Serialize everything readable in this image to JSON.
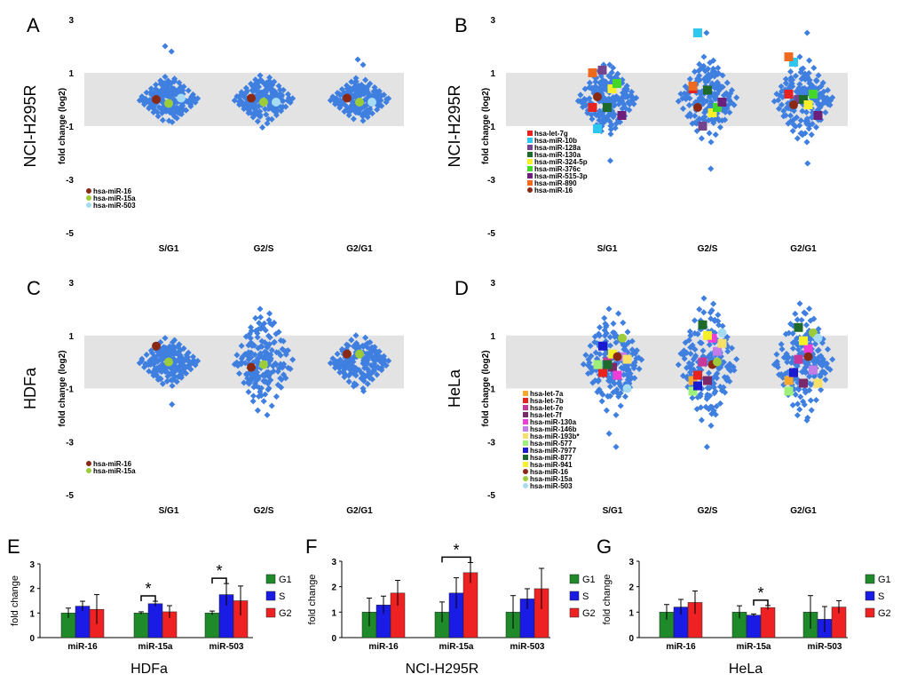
{
  "figure": {
    "background": "#ffffff",
    "band_color": "#e3e3e3",
    "cloud_color": "#3f7fe0"
  },
  "chart_data": [
    {
      "id": "A",
      "type": "scatter",
      "panel_label": "A",
      "row_label": "NCI-H295R",
      "ylabel": "fold change (log2)",
      "ylim": [
        -5,
        3
      ],
      "yticks": [
        3,
        1,
        -1,
        -3,
        -5
      ],
      "band": [
        -1,
        1
      ],
      "categories": [
        "S/G1",
        "G2/S",
        "G2/G1"
      ],
      "clouds": [
        {
          "spread": 0.85,
          "outliers": [
            1.8,
            2.0,
            -0.8
          ]
        },
        {
          "spread": 0.9,
          "outliers": [
            -1.05
          ]
        },
        {
          "spread": 0.8,
          "outliers": [
            1.3,
            1.5
          ]
        }
      ],
      "legend": [
        {
          "name": "hsa-miR-16",
          "color": "#8b2a14",
          "shape": "circle"
        },
        {
          "name": "hsa-miR-15a",
          "color": "#9ccc3a",
          "shape": "circle"
        },
        {
          "name": "hsa-miR-503",
          "color": "#a6dcf2",
          "shape": "circle"
        }
      ],
      "points": [
        {
          "series": "hsa-miR-16",
          "values": [
            0.0,
            0.05,
            0.05
          ]
        },
        {
          "series": "hsa-miR-15a",
          "values": [
            -0.15,
            -0.1,
            -0.1
          ]
        },
        {
          "series": "hsa-miR-503",
          "values": [
            0.05,
            -0.1,
            -0.1
          ]
        }
      ]
    },
    {
      "id": "B",
      "type": "scatter",
      "panel_label": "B",
      "row_label": "NCI-H295R",
      "ylabel": "fold change (log2)",
      "ylim": [
        -5,
        3
      ],
      "yticks": [
        3,
        1,
        -1,
        -3,
        -5
      ],
      "band": [
        -1,
        1
      ],
      "categories": [
        "S/G1",
        "G2/S",
        "G2/G1"
      ],
      "clouds": [
        {
          "spread": 1.3,
          "outliers": [
            -2.3,
            1.3
          ]
        },
        {
          "spread": 1.6,
          "outliers": [
            2.5,
            -2.6
          ]
        },
        {
          "spread": 1.6,
          "outliers": [
            2.5,
            -2.4
          ]
        }
      ],
      "legend": [
        {
          "name": "hsa-let-7g",
          "color": "#e8231f",
          "shape": "square"
        },
        {
          "name": "hsa-miR-10b",
          "color": "#2ec7f0",
          "shape": "square"
        },
        {
          "name": "hsa-miR-128a",
          "color": "#74448e",
          "shape": "square"
        },
        {
          "name": "hsa-miR-130a",
          "color": "#1e6a2a",
          "shape": "square"
        },
        {
          "name": "hsa-miR-324-5p",
          "color": "#f5f02a",
          "shape": "square"
        },
        {
          "name": "hsa-miR-376c",
          "color": "#44d628",
          "shape": "square"
        },
        {
          "name": "hsa-miR-515-3p",
          "color": "#6d1f7c",
          "shape": "square"
        },
        {
          "name": "hsa-miR-890",
          "color": "#ee6a1e",
          "shape": "square"
        },
        {
          "name": "hsa-miR-16",
          "color": "#8b2a14",
          "shape": "circle"
        }
      ],
      "points": [
        {
          "series": "hsa-let-7g",
          "values": [
            -0.3,
            0.4,
            0.2
          ]
        },
        {
          "series": "hsa-miR-10b",
          "values": [
            -1.1,
            2.5,
            1.4
          ]
        },
        {
          "series": "hsa-miR-128a",
          "values": [
            1.1,
            -1.0,
            0.0
          ]
        },
        {
          "series": "hsa-miR-130a",
          "values": [
            -0.3,
            0.35,
            0.0
          ]
        },
        {
          "series": "hsa-miR-324-5p",
          "values": [
            0.4,
            -0.5,
            -0.2
          ]
        },
        {
          "series": "hsa-miR-376c",
          "values": [
            0.6,
            -0.3,
            0.2
          ]
        },
        {
          "series": "hsa-miR-515-3p",
          "values": [
            -0.6,
            -0.1,
            -0.6
          ]
        },
        {
          "series": "hsa-miR-890",
          "values": [
            1.0,
            0.5,
            1.6
          ]
        },
        {
          "series": "hsa-miR-16",
          "values": [
            0.1,
            -0.3,
            -0.2
          ]
        }
      ]
    },
    {
      "id": "C",
      "type": "scatter",
      "panel_label": "C",
      "row_label": "HDFa",
      "ylabel": "fold change (log2)",
      "ylim": [
        -5,
        3
      ],
      "yticks": [
        3,
        1,
        -1,
        -3,
        -5
      ],
      "band": [
        -1,
        1
      ],
      "categories": [
        "S/G1",
        "G2/S",
        "G2/G1"
      ],
      "clouds": [
        {
          "spread": 0.9,
          "outliers": [
            -1.6
          ]
        },
        {
          "spread": 2.0,
          "outliers": [
            -0.5
          ]
        },
        {
          "spread": 1.0,
          "outliers": [
            -1.1
          ]
        }
      ],
      "legend": [
        {
          "name": "hsa-miR-16",
          "color": "#8b2a14",
          "shape": "circle"
        },
        {
          "name": "hsa-miR-15a",
          "color": "#9ccc3a",
          "shape": "circle"
        }
      ],
      "points": [
        {
          "series": "hsa-miR-16",
          "values": [
            0.6,
            -0.2,
            0.3
          ]
        },
        {
          "series": "hsa-miR-15a",
          "values": [
            0.0,
            -0.1,
            0.3
          ]
        }
      ]
    },
    {
      "id": "D",
      "type": "scatter",
      "panel_label": "D",
      "row_label": "HeLa",
      "ylabel": "fold change (log2)",
      "ylim": [
        -5,
        3
      ],
      "yticks": [
        3,
        1,
        -1,
        -3,
        -5
      ],
      "band": [
        -1,
        1
      ],
      "categories": [
        "S/G1",
        "G2/S",
        "G2/G1"
      ],
      "clouds": [
        {
          "spread": 2.0,
          "outliers": [
            -3.2,
            -2.7
          ]
        },
        {
          "spread": 2.4,
          "outliers": [
            -3.2
          ]
        },
        {
          "spread": 2.2,
          "outliers": [
            -2.1
          ]
        }
      ],
      "legend": [
        {
          "name": "hsa-let-7a",
          "color": "#f5a830",
          "shape": "square"
        },
        {
          "name": "hsa-let-7b",
          "color": "#e8231f",
          "shape": "square"
        },
        {
          "name": "hsa-let-7e",
          "color": "#c8389a",
          "shape": "square"
        },
        {
          "name": "hsa-let-7f",
          "color": "#7a2a6a",
          "shape": "square"
        },
        {
          "name": "hsa-miR-130a",
          "color": "#f23cd8",
          "shape": "square"
        },
        {
          "name": "hsa-miR-146b",
          "color": "#c47ce8",
          "shape": "square"
        },
        {
          "name": "hsa-miR-193b*",
          "color": "#f7e06a",
          "shape": "square"
        },
        {
          "name": "hsa-miR-577",
          "color": "#9ef07a",
          "shape": "square"
        },
        {
          "name": "hsa-miR-7977",
          "color": "#1a1ad0",
          "shape": "square"
        },
        {
          "name": "hsa-miR-877",
          "color": "#1e6a2a",
          "shape": "square"
        },
        {
          "name": "hsa-miR-941",
          "color": "#f5f02a",
          "shape": "square"
        },
        {
          "name": "hsa-miR-16",
          "color": "#8b2a14",
          "shape": "circle"
        },
        {
          "name": "hsa-miR-15a",
          "color": "#9ccc3a",
          "shape": "circle"
        },
        {
          "name": "hsa-miR-503",
          "color": "#a6dcf2",
          "shape": "circle"
        }
      ],
      "points": [
        {
          "series": "hsa-let-7a",
          "values": [
            -0.1,
            -0.7,
            -0.7
          ]
        },
        {
          "series": "hsa-let-7b",
          "values": [
            -0.4,
            -0.5,
            -0.4
          ]
        },
        {
          "series": "hsa-let-7e",
          "values": [
            0.0,
            0.0,
            0.1
          ]
        },
        {
          "series": "hsa-let-7f",
          "values": [
            -0.2,
            -0.7,
            -0.8
          ]
        },
        {
          "series": "hsa-miR-130a",
          "values": [
            -0.5,
            0.9,
            0.5
          ]
        },
        {
          "series": "hsa-miR-146b",
          "values": [
            0.2,
            0.4,
            -0.3
          ]
        },
        {
          "series": "hsa-miR-193b*",
          "values": [
            0.1,
            0.7,
            -0.8
          ]
        },
        {
          "series": "hsa-miR-577",
          "values": [
            -0.1,
            -1.1,
            -1.1
          ]
        },
        {
          "series": "hsa-miR-7977",
          "values": [
            0.6,
            -0.9,
            -0.4
          ]
        },
        {
          "series": "hsa-miR-877",
          "values": [
            -0.1,
            1.4,
            1.3
          ]
        },
        {
          "series": "hsa-miR-941",
          "values": [
            0.3,
            1.0,
            0.8
          ]
        },
        {
          "series": "hsa-miR-16",
          "values": [
            0.2,
            -0.1,
            0.2
          ]
        },
        {
          "series": "hsa-miR-15a",
          "values": [
            0.9,
            0.0,
            1.1
          ]
        },
        {
          "series": "hsa-miR-503",
          "values": [
            -1.0,
            1.1,
            0.9
          ]
        }
      ]
    },
    {
      "id": "E",
      "type": "bar",
      "panel_label": "E",
      "caption": "HDFa",
      "ylabel": "fold change",
      "ylim": [
        0,
        3
      ],
      "yticks": [
        0,
        1,
        2,
        3
      ],
      "categories": [
        "miR-16",
        "miR-15a",
        "miR-503"
      ],
      "series": [
        {
          "name": "G1",
          "color": "#1f8a2a",
          "values": [
            1.0,
            1.0,
            1.0
          ],
          "errors": [
            0.2,
            0.05,
            0.08
          ]
        },
        {
          "name": "S",
          "color": "#1b1be6",
          "values": [
            1.28,
            1.38,
            1.75
          ],
          "errors": [
            0.2,
            0.1,
            0.45
          ]
        },
        {
          "name": "G2",
          "color": "#ee2222",
          "values": [
            1.15,
            1.05,
            1.5
          ],
          "errors": [
            0.6,
            0.25,
            0.6
          ]
        }
      ],
      "significance": [
        {
          "category": 1,
          "from": "G1",
          "to": "S",
          "label": "*"
        },
        {
          "category": 2,
          "from": "G1",
          "to": "S",
          "label": "*"
        }
      ]
    },
    {
      "id": "F",
      "type": "bar",
      "panel_label": "F",
      "caption": "NCI-H295R",
      "ylabel": "fold change",
      "ylim": [
        0,
        3
      ],
      "yticks": [
        0,
        1,
        2,
        3
      ],
      "categories": [
        "miR-16",
        "miR-15a",
        "miR-503"
      ],
      "series": [
        {
          "name": "G1",
          "color": "#1f8a2a",
          "values": [
            1.0,
            1.0,
            1.0
          ],
          "errors": [
            0.55,
            0.4,
            0.65
          ]
        },
        {
          "name": "S",
          "color": "#1b1be6",
          "values": [
            1.28,
            1.75,
            1.52
          ],
          "errors": [
            0.35,
            0.6,
            0.4
          ]
        },
        {
          "name": "G2",
          "color": "#ee2222",
          "values": [
            1.75,
            2.55,
            1.92
          ],
          "errors": [
            0.5,
            0.4,
            0.8
          ]
        }
      ],
      "significance": [
        {
          "category": 1,
          "from": "G1",
          "to": "G2",
          "label": "*"
        }
      ]
    },
    {
      "id": "G",
      "type": "bar",
      "panel_label": "G",
      "caption": "HeLa",
      "ylabel": "fold change",
      "ylim": [
        0,
        3
      ],
      "yticks": [
        0,
        1,
        2,
        3
      ],
      "categories": [
        "miR-16",
        "miR-15a",
        "miR-503"
      ],
      "series": [
        {
          "name": "G1",
          "color": "#1f8a2a",
          "values": [
            1.0,
            1.0,
            1.0
          ],
          "errors": [
            0.3,
            0.25,
            0.65
          ]
        },
        {
          "name": "S",
          "color": "#1b1be6",
          "values": [
            1.2,
            0.88,
            0.72
          ],
          "errors": [
            0.3,
            0.05,
            0.5
          ]
        },
        {
          "name": "G2",
          "color": "#ee2222",
          "values": [
            1.38,
            1.18,
            1.2
          ],
          "errors": [
            0.45,
            0.08,
            0.25
          ]
        }
      ],
      "significance": [
        {
          "category": 1,
          "from": "S",
          "to": "G2",
          "label": "*"
        }
      ]
    }
  ]
}
